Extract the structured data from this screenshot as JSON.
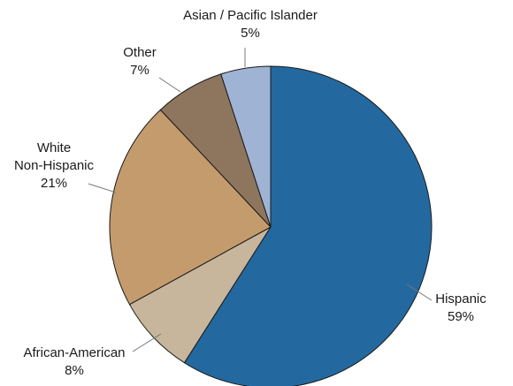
{
  "chart_data": {
    "type": "pie",
    "title": "",
    "slices": [
      {
        "label_lines": [
          "Hispanic"
        ],
        "pct_label": "59%",
        "value": 59,
        "color": "#2369a0"
      },
      {
        "label_lines": [
          "African-American"
        ],
        "pct_label": "8%",
        "value": 8,
        "color": "#c7b69c"
      },
      {
        "label_lines": [
          "White",
          "Non-Hispanic"
        ],
        "pct_label": "21%",
        "value": 21,
        "color": "#c49b6c"
      },
      {
        "label_lines": [
          "Other"
        ],
        "pct_label": "7%",
        "value": 7,
        "color": "#8e765e"
      },
      {
        "label_lines": [
          "Asian / Pacific Islander"
        ],
        "pct_label": "5%",
        "value": 5,
        "color": "#9fb3d4"
      }
    ],
    "start_angle": "12 o'clock",
    "direction": "clockwise",
    "legend": "none"
  }
}
